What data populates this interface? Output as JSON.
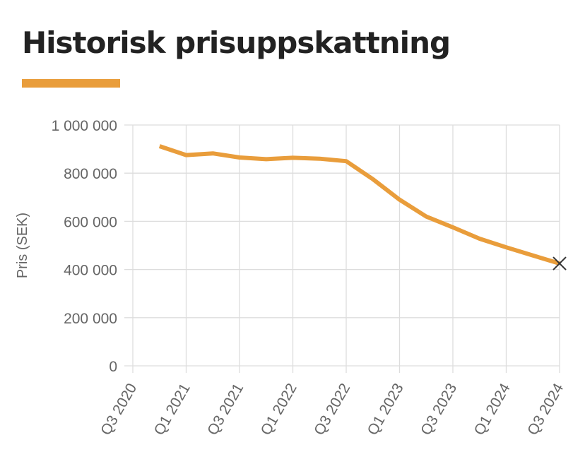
{
  "header": {
    "title": "Historisk prisuppskattning"
  },
  "colors": {
    "accent": "#E99D3B",
    "line": "#E99D3B",
    "grid": "#DDDDDD",
    "text": "#666666",
    "marker": "#333333"
  },
  "chart_data": {
    "type": "line",
    "title": "Historisk prisuppskattning",
    "xlabel": "",
    "ylabel": "Pris (SEK)",
    "ylim": [
      0,
      1000000
    ],
    "yticks": [
      0,
      200000,
      400000,
      600000,
      800000,
      1000000
    ],
    "ytick_labels": [
      "0",
      "200 000",
      "400 000",
      "600 000",
      "800 000",
      "1 000 000"
    ],
    "xticks": [
      "Q3 2020",
      "Q1 2021",
      "Q3 2021",
      "Q1 2022",
      "Q3 2022",
      "Q1 2023",
      "Q3 2023",
      "Q1 2024",
      "Q3 2024"
    ],
    "grid": true,
    "x": [
      "Q4 2020",
      "Q1 2021",
      "Q2 2021",
      "Q3 2021",
      "Q4 2021",
      "Q1 2022",
      "Q2 2022",
      "Q3 2022",
      "Q4 2022",
      "Q1 2023",
      "Q2 2023",
      "Q3 2023",
      "Q4 2023",
      "Q1 2024",
      "Q2 2024",
      "Q3 2024"
    ],
    "series": [
      {
        "values": [
          912000,
          875000,
          882000,
          865000,
          858000,
          864000,
          860000,
          850000,
          775000,
          690000,
          620000,
          575000,
          528000,
          492000,
          458000,
          425000
        ],
        "last_point_marker": "x"
      }
    ]
  }
}
